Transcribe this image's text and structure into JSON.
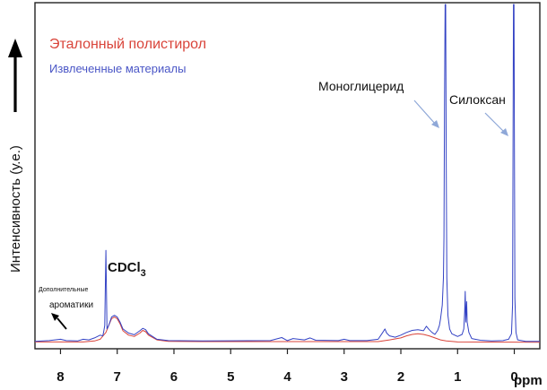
{
  "chart_data": {
    "type": "line",
    "title": "",
    "xlabel": "ppm",
    "ylabel": "Интенсивность (у.е.)",
    "x_reversed": true,
    "xlim": [
      8.45,
      -0.45
    ],
    "ylim": [
      0,
      100
    ],
    "grid": false,
    "legend_position": "top-left",
    "x_ticks": [
      8,
      7,
      6,
      5,
      4,
      3,
      2,
      1,
      0
    ],
    "colors": {
      "red": "#d9443a",
      "blue": "#3342c4",
      "arrow": "#8fa8d8"
    },
    "series": [
      {
        "name": "Эталонный полистирол",
        "color": "#d9443a",
        "points": [
          [
            8.45,
            1.2
          ],
          [
            7.6,
            1.2
          ],
          [
            7.4,
            1.5
          ],
          [
            7.3,
            2.0
          ],
          [
            7.2,
            4.0
          ],
          [
            7.15,
            6.0
          ],
          [
            7.1,
            8.0
          ],
          [
            7.05,
            8.5
          ],
          [
            7.0,
            8.0
          ],
          [
            6.95,
            6.5
          ],
          [
            6.9,
            4.5
          ],
          [
            6.8,
            3.2
          ],
          [
            6.7,
            2.8
          ],
          [
            6.6,
            3.8
          ],
          [
            6.55,
            4.6
          ],
          [
            6.5,
            4.2
          ],
          [
            6.45,
            3.2
          ],
          [
            6.3,
            1.8
          ],
          [
            6.1,
            1.4
          ],
          [
            5.5,
            1.3
          ],
          [
            2.4,
            1.3
          ],
          [
            2.2,
            1.8
          ],
          [
            2.0,
            2.4
          ],
          [
            1.9,
            3.0
          ],
          [
            1.8,
            3.4
          ],
          [
            1.7,
            3.6
          ],
          [
            1.6,
            3.4
          ],
          [
            1.5,
            3.0
          ],
          [
            1.4,
            2.4
          ],
          [
            1.3,
            1.8
          ],
          [
            1.2,
            1.5
          ],
          [
            1.0,
            1.2
          ],
          [
            -0.45,
            1.1
          ]
        ]
      },
      {
        "name": "Извлеченные материалы",
        "color": "#3342c4",
        "points": [
          [
            8.45,
            1.4
          ],
          [
            8.2,
            1.6
          ],
          [
            8.0,
            2.0
          ],
          [
            7.9,
            1.6
          ],
          [
            7.7,
            1.5
          ],
          [
            7.6,
            2.0
          ],
          [
            7.5,
            1.8
          ],
          [
            7.4,
            2.4
          ],
          [
            7.3,
            3.2
          ],
          [
            7.255,
            3.0
          ],
          [
            7.24,
            4.0
          ],
          [
            7.22,
            6.0
          ],
          [
            7.2,
            28.0
          ],
          [
            7.18,
            5.0
          ],
          [
            7.15,
            6.0
          ],
          [
            7.1,
            8.5
          ],
          [
            7.05,
            9.0
          ],
          [
            7.0,
            8.5
          ],
          [
            6.95,
            7.0
          ],
          [
            6.9,
            5.0
          ],
          [
            6.8,
            3.8
          ],
          [
            6.7,
            3.3
          ],
          [
            6.6,
            4.5
          ],
          [
            6.55,
            5.2
          ],
          [
            6.5,
            4.8
          ],
          [
            6.45,
            3.6
          ],
          [
            6.3,
            2.0
          ],
          [
            6.1,
            1.6
          ],
          [
            5.5,
            1.5
          ],
          [
            4.3,
            1.6
          ],
          [
            4.1,
            2.5
          ],
          [
            4.0,
            1.6
          ],
          [
            3.9,
            2.2
          ],
          [
            3.7,
            1.8
          ],
          [
            3.6,
            2.4
          ],
          [
            3.5,
            1.7
          ],
          [
            3.1,
            1.6
          ],
          [
            3.0,
            2.0
          ],
          [
            2.9,
            1.6
          ],
          [
            2.6,
            1.6
          ],
          [
            2.4,
            2.0
          ],
          [
            2.32,
            4.0
          ],
          [
            2.28,
            5.0
          ],
          [
            2.25,
            3.8
          ],
          [
            2.2,
            3.0
          ],
          [
            2.1,
            2.6
          ],
          [
            2.0,
            3.2
          ],
          [
            1.9,
            4.0
          ],
          [
            1.8,
            4.6
          ],
          [
            1.7,
            4.8
          ],
          [
            1.6,
            4.5
          ],
          [
            1.55,
            5.8
          ],
          [
            1.5,
            4.8
          ],
          [
            1.45,
            4.0
          ],
          [
            1.4,
            3.4
          ],
          [
            1.35,
            4.6
          ],
          [
            1.32,
            6.0
          ],
          [
            1.3,
            8.0
          ],
          [
            1.27,
            12.0
          ],
          [
            1.25,
            20.0
          ],
          [
            1.24,
            32.0
          ],
          [
            1.23,
            70.0
          ],
          [
            1.22,
            100.0
          ],
          [
            1.21,
            100.0
          ],
          [
            1.2,
            55.0
          ],
          [
            1.19,
            20.0
          ],
          [
            1.17,
            9.0
          ],
          [
            1.14,
            5.0
          ],
          [
            1.1,
            3.6
          ],
          [
            1.0,
            2.8
          ],
          [
            0.92,
            3.4
          ],
          [
            0.89,
            5.0
          ],
          [
            0.875,
            10.0
          ],
          [
            0.865,
            16.0
          ],
          [
            0.855,
            7.0
          ],
          [
            0.84,
            13.0
          ],
          [
            0.83,
            7.0
          ],
          [
            0.8,
            4.0
          ],
          [
            0.75,
            2.2
          ],
          [
            0.6,
            1.7
          ],
          [
            0.4,
            1.5
          ],
          [
            0.2,
            1.6
          ],
          [
            0.1,
            2.0
          ],
          [
            0.05,
            3.6
          ],
          [
            0.03,
            12.0
          ],
          [
            0.015,
            100.0
          ],
          [
            0.005,
            100.0
          ],
          [
            -0.01,
            14.0
          ],
          [
            -0.03,
            4.0
          ],
          [
            -0.06,
            1.8
          ],
          [
            -0.2,
            1.4
          ],
          [
            -0.45,
            1.4
          ]
        ]
      }
    ],
    "annotations": {
      "moonoglyceride": "Моноглицерид",
      "siloxane": "Силоксан",
      "cdcl3_base": "CDCl",
      "cdcl3_sub": "3",
      "extra_aromatics_line1": "Дополнительные",
      "extra_aromatics_line2": "ароматики"
    }
  }
}
